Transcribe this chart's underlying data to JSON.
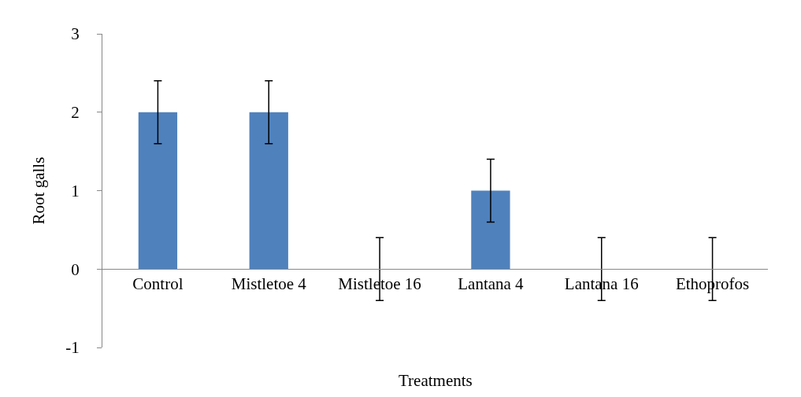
{
  "chart_data": {
    "type": "bar",
    "xlabel": "Treatments",
    "ylabel": "Root galls",
    "categories": [
      "Control",
      "Mistletoe 4",
      "Mistletoe 16",
      "Lantana 4",
      "Lantana 16",
      "Ethoprofos"
    ],
    "values": [
      2,
      2,
      0,
      1,
      0,
      0
    ],
    "errors": [
      0.4,
      0.4,
      0.4,
      0.4,
      0.4,
      0.4
    ],
    "color": "#4f81bd",
    "ylim": [
      -1,
      3
    ],
    "yticks": [
      -1,
      0,
      1,
      2,
      3
    ],
    "grid": false
  }
}
